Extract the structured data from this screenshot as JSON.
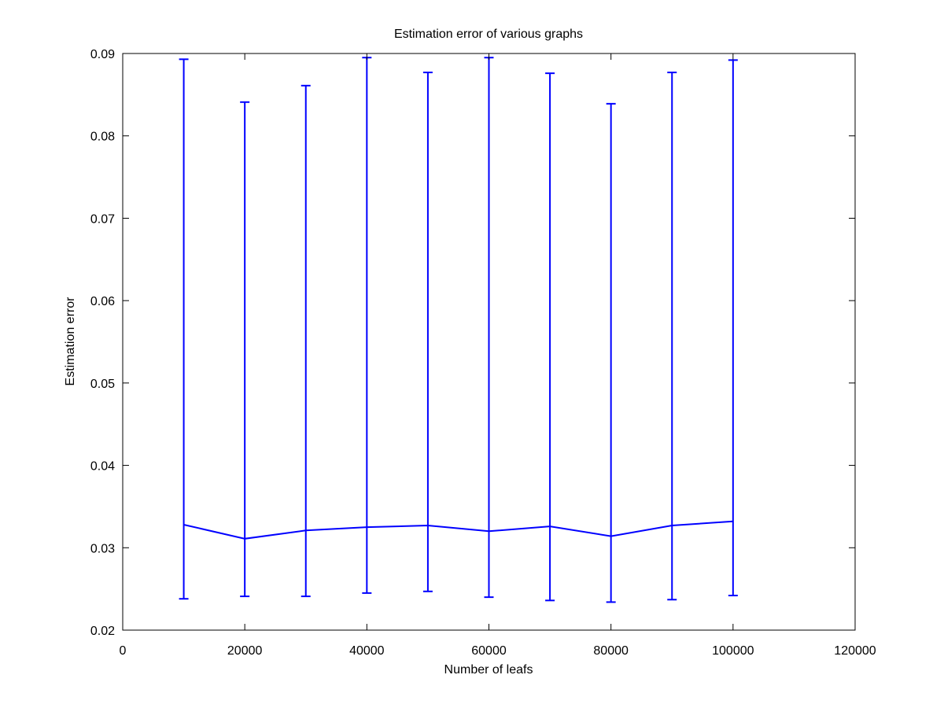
{
  "chart_data": {
    "type": "line",
    "title": "Estimation error of various graphs",
    "xlabel": "Number of leafs",
    "ylabel": "Estimation error",
    "xlim": [
      0,
      120000
    ],
    "ylim": [
      0.02,
      0.09
    ],
    "xticks": [
      0,
      20000,
      40000,
      60000,
      80000,
      100000,
      120000
    ],
    "xtick_labels": [
      "0",
      "20000",
      "40000",
      "60000",
      "80000",
      "100000",
      "120000"
    ],
    "yticks": [
      0.02,
      0.03,
      0.04,
      0.05,
      0.06,
      0.07,
      0.08,
      0.09
    ],
    "ytick_labels": [
      "0.02",
      "0.03",
      "0.04",
      "0.05",
      "0.06",
      "0.07",
      "0.08",
      "0.09"
    ],
    "grid": false,
    "line_color": "#0000ff",
    "series": [
      {
        "x": [
          10000,
          20000,
          30000,
          40000,
          50000,
          60000,
          70000,
          80000,
          90000,
          100000
        ],
        "y": [
          0.0328,
          0.0311,
          0.0321,
          0.0325,
          0.0327,
          0.032,
          0.0326,
          0.0314,
          0.0327,
          0.0332
        ],
        "error_low": [
          0.0238,
          0.0241,
          0.0241,
          0.0245,
          0.0247,
          0.024,
          0.0236,
          0.0234,
          0.0237,
          0.0242
        ],
        "error_high": [
          0.0893,
          0.0841,
          0.0861,
          0.0895,
          0.0877,
          0.0895,
          0.0876,
          0.0839,
          0.0877,
          0.0892
        ]
      }
    ]
  }
}
